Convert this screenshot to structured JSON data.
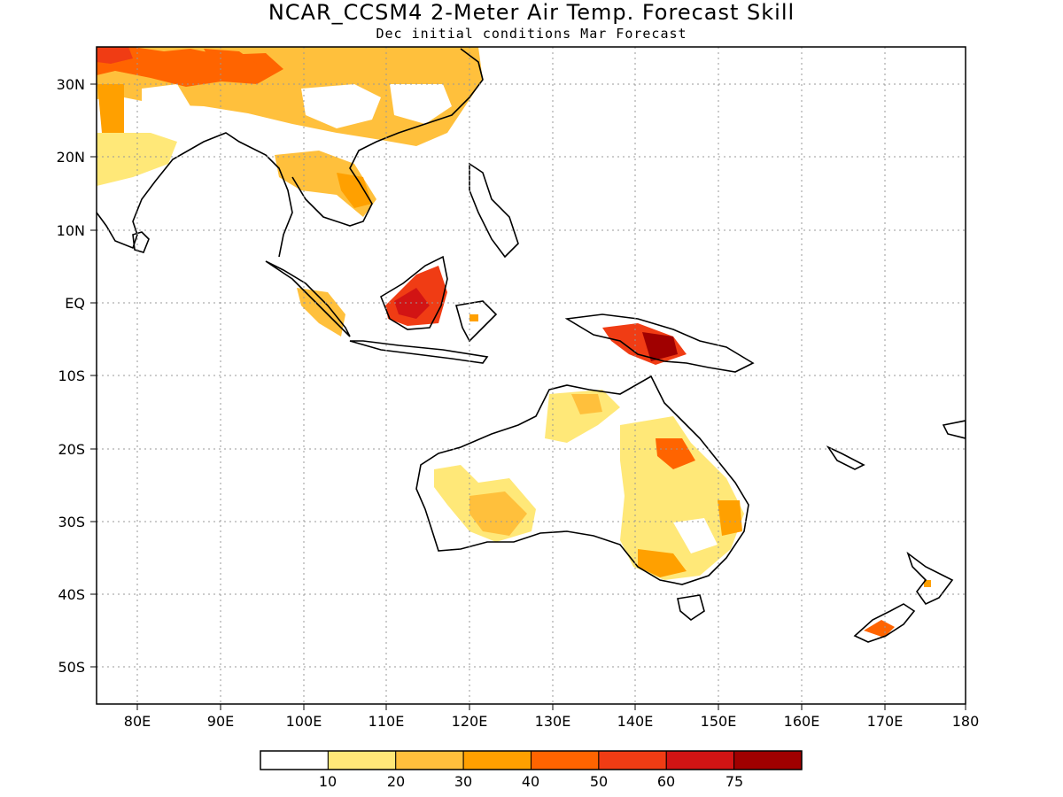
{
  "title": "NCAR_CCSM4 2-Meter Air Temp. Forecast Skill",
  "subtitle": "Dec initial conditions  Mar Forecast",
  "lon_ticks": [
    "80E",
    "90E",
    "100E",
    "110E",
    "120E",
    "130E",
    "140E",
    "150E",
    "160E",
    "170E",
    "180"
  ],
  "lat_ticks": [
    "30N",
    "20N",
    "10N",
    "EQ",
    "10S",
    "20S",
    "30S",
    "40S",
    "50S"
  ],
  "map": {
    "lon_range": [
      75,
      180
    ],
    "lat_range": [
      -55,
      35
    ],
    "grid": "dotted"
  },
  "legend": {
    "colors": [
      "#ffffff",
      "#ffe878",
      "#ffc03c",
      "#ffa000",
      "#ff6400",
      "#f03c14",
      "#d21414",
      "#a00000"
    ],
    "labels": [
      "10",
      "20",
      "30",
      "40",
      "50",
      "60",
      "75"
    ]
  }
}
